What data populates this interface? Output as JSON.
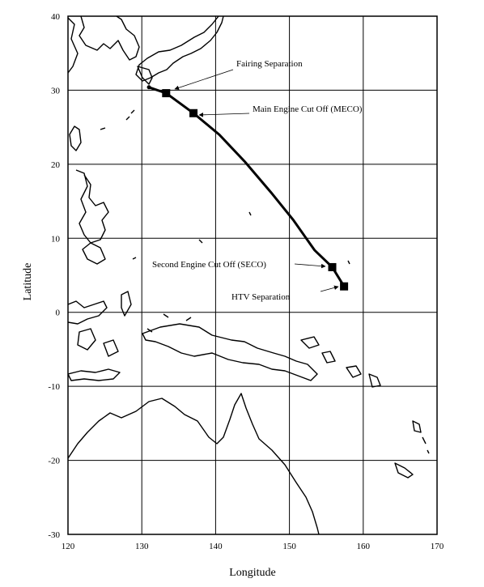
{
  "map": {
    "xlabel": "Longitude",
    "ylabel": "Latitude",
    "xlim": [
      120,
      170
    ],
    "ylim": [
      -30,
      40
    ],
    "x_ticks": [
      120,
      130,
      140,
      150,
      160,
      170
    ],
    "y_ticks": [
      -30,
      -20,
      -10,
      0,
      10,
      20,
      30,
      40
    ],
    "grid": true
  },
  "trajectory": {
    "launch": {
      "lon": 130.97,
      "lat": 30.4
    },
    "path": [
      [
        130.97,
        30.4
      ],
      [
        133.3,
        29.6
      ],
      [
        137.0,
        26.9
      ],
      [
        140.5,
        24.0
      ],
      [
        144.0,
        20.3
      ],
      [
        147.5,
        16.2
      ],
      [
        150.5,
        12.5
      ],
      [
        153.4,
        8.4
      ],
      [
        155.8,
        6.1
      ],
      [
        157.4,
        3.5
      ]
    ],
    "events": [
      {
        "name": "Fairing Separation",
        "lon": 133.3,
        "lat": 29.6,
        "label": "Fairing Separation"
      },
      {
        "name": "MECO",
        "lon": 137.0,
        "lat": 26.9,
        "label": "Main Engine Cut Off (MECO)"
      },
      {
        "name": "SECO",
        "lon": 155.8,
        "lat": 6.1,
        "label": "Second Engine Cut Off (SECO)"
      },
      {
        "name": "HTV Separation",
        "lon": 157.4,
        "lat": 3.5,
        "label": "HTV Separation"
      }
    ]
  }
}
